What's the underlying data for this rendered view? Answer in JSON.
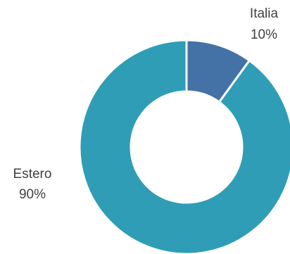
{
  "chart_data": {
    "type": "pie",
    "title": "",
    "donut": true,
    "slices": [
      {
        "label": "Italia",
        "value": 10,
        "value_text": "10%",
        "color": "#4472A6"
      },
      {
        "label": "Estero",
        "value": 90,
        "value_text": "90%",
        "color": "#2F9DB5"
      }
    ],
    "legend": "none"
  }
}
